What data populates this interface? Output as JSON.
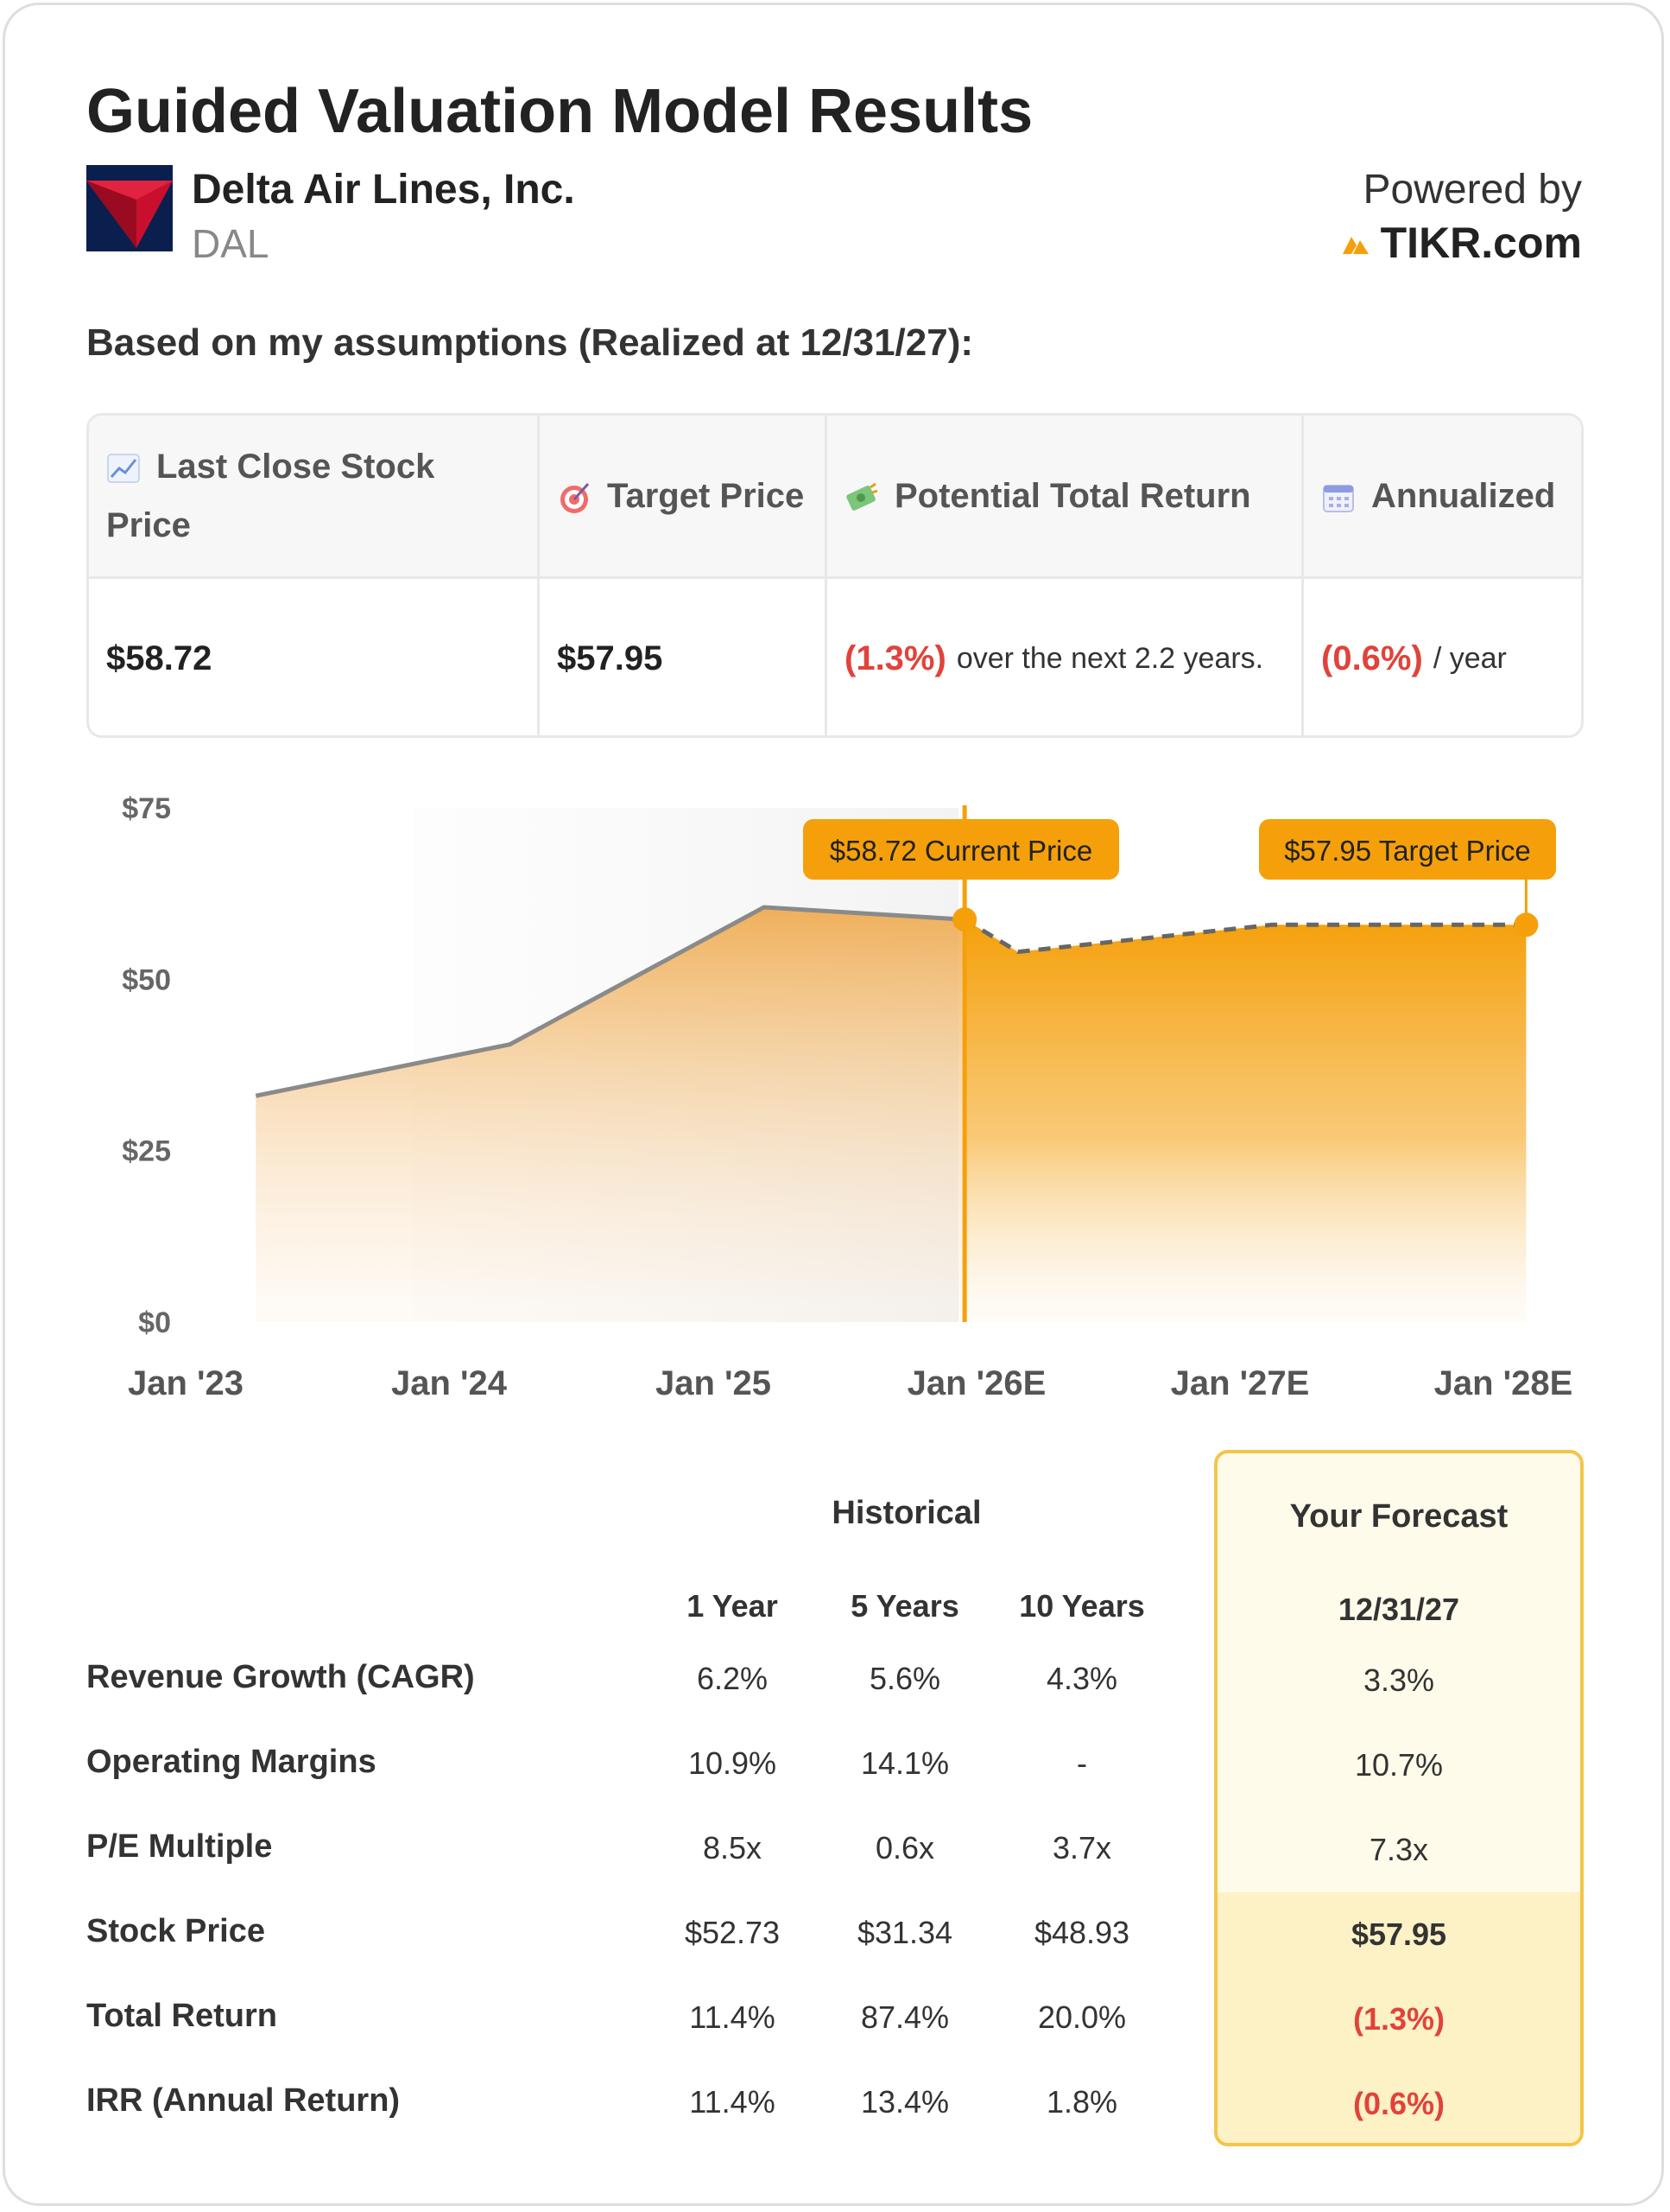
{
  "title": "Guided Valuation Model Results",
  "company": {
    "name": "Delta Air Lines, Inc.",
    "ticker": "DAL",
    "logo_icon": "delta-logo-icon"
  },
  "powered": {
    "label": "Powered by",
    "brand": "TIKR.com",
    "brand_icon": "tikr-logo-icon"
  },
  "assumptions_heading": "Based on my assumptions (Realized at 12/31/27):",
  "stats": {
    "headers": {
      "last_close": "Last Close Stock Price",
      "target": "Target Price",
      "potential": "Potential Total Return",
      "annualized": "Annualized"
    },
    "icons": [
      "chart-up-icon",
      "target-icon",
      "money-icon",
      "calendar-icon"
    ],
    "values": {
      "last_close": "$58.72",
      "target": "$57.95",
      "potential": "(1.3%)",
      "potential_suffix": "over the next 2.2 years.",
      "annualized": "(0.6%)",
      "annualized_suffix": "/ year"
    }
  },
  "chart_data": {
    "type": "area",
    "x": [
      "Jan '23",
      "Jan '24",
      "Jan '25",
      "Jan '26E",
      "Jan '27E",
      "Jan '28E"
    ],
    "y_ticks": [
      "$0",
      "$25",
      "$50",
      "$75"
    ],
    "ylim": [
      0,
      75
    ],
    "historical": [
      {
        "x": 2023.13,
        "y": 33
      },
      {
        "x": 2024.13,
        "y": 40.5
      },
      {
        "x": 2025.13,
        "y": 60.5
      },
      {
        "x": 2025.92,
        "y": 58.72
      }
    ],
    "forecast": [
      {
        "x": 2025.92,
        "y": 58.72
      },
      {
        "x": 2026.13,
        "y": 54
      },
      {
        "x": 2027.13,
        "y": 57.95
      },
      {
        "x": 2028.13,
        "y": 57.95
      }
    ],
    "current_callout": "$58.72 Current Price",
    "target_callout": "$57.95 Target Price",
    "colors": {
      "accent": "#f5a00b",
      "historical_line": "#8a8a8a",
      "forecast_line": "#666666"
    }
  },
  "table": {
    "historical_label": "Historical",
    "forecast_label": "Your Forecast",
    "columns": [
      "1 Year",
      "5 Years",
      "10 Years"
    ],
    "forecast_column": "12/31/27",
    "rows": [
      {
        "label": "Revenue Growth (CAGR)",
        "values": [
          "6.2%",
          "5.6%",
          "4.3%"
        ],
        "forecast": "3.3%"
      },
      {
        "label": "Operating Margins",
        "values": [
          "10.9%",
          "14.1%",
          "-"
        ],
        "forecast": "10.7%"
      },
      {
        "label": "P/E Multiple",
        "values": [
          "8.5x",
          "0.6x",
          "3.7x"
        ],
        "forecast": "7.3x"
      },
      {
        "label": "Stock Price",
        "values": [
          "$52.73",
          "$31.34",
          "$48.93"
        ],
        "forecast": "$57.95"
      },
      {
        "label": "Total Return",
        "values": [
          "11.4%",
          "87.4%",
          "20.0%"
        ],
        "forecast": "(1.3%)"
      },
      {
        "label": "IRR (Annual Return)",
        "values": [
          "11.4%",
          "13.4%",
          "1.8%"
        ],
        "forecast": "(0.6%)"
      }
    ]
  }
}
